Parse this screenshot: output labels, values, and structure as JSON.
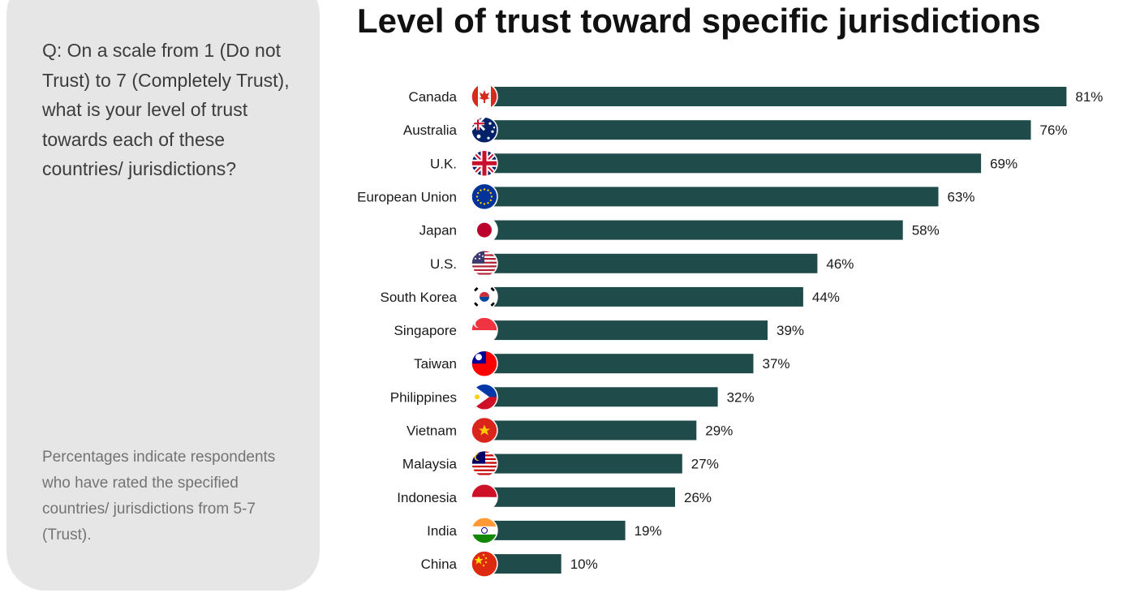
{
  "panel": {
    "question": "Q: On a scale from 1 (Do not Trust) to 7 (Completely Trust), what is your level of trust towards each of these countries/ jurisdictions?",
    "note": "Percentages indicate respondents who have rated the specified countries/ jurisdictions from 5-7 (Trust)."
  },
  "chart_data": {
    "type": "bar",
    "orientation": "horizontal",
    "title": "Level of trust toward specific jurisdictions",
    "categories": [
      "Canada",
      "Australia",
      "U.K.",
      "European Union",
      "Japan",
      "U.S.",
      "South Korea",
      "Singapore",
      "Taiwan",
      "Philippines",
      "Vietnam",
      "Malaysia",
      "Indonesia",
      "India",
      "China"
    ],
    "values": [
      81,
      76,
      69,
      63,
      58,
      46,
      44,
      39,
      37,
      32,
      29,
      27,
      26,
      19,
      10
    ],
    "value_labels": [
      "81%",
      "76%",
      "69%",
      "63%",
      "58%",
      "46%",
      "44%",
      "39%",
      "37%",
      "32%",
      "29%",
      "27%",
      "26%",
      "19%",
      "10%"
    ],
    "unit": "%",
    "bar_color": "#1f4b4a",
    "flag_icons": [
      "canada-flag-icon",
      "australia-flag-icon",
      "uk-flag-icon",
      "european-union-flag-icon",
      "japan-flag-icon",
      "us-flag-icon",
      "south-korea-flag-icon",
      "singapore-flag-icon",
      "taiwan-flag-icon",
      "philippines-flag-icon",
      "vietnam-flag-icon",
      "malaysia-flag-icon",
      "indonesia-flag-icon",
      "india-flag-icon",
      "china-flag-icon"
    ],
    "grid": false,
    "legend": "none"
  }
}
